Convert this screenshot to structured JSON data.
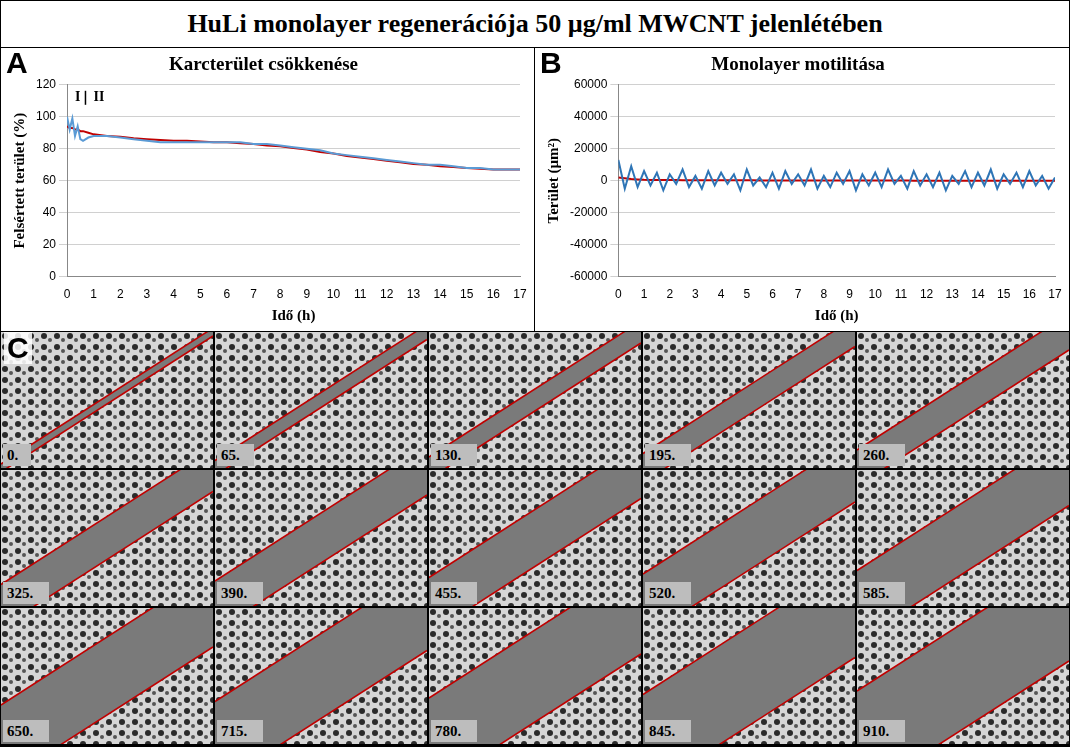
{
  "title": "HuLi monolayer regenerációja 50 µg/ml MWCNT jelenlétében",
  "chart_data": [
    {
      "panel": "A",
      "type": "line",
      "title": "Karcterület csökkenése",
      "x_label": "Idő (h)",
      "y_label": "Felsértett terület (%)",
      "annotations": [
        "I",
        "II"
      ],
      "x": [
        0,
        0.1,
        0.2,
        0.3,
        0.4,
        0.5,
        0.6,
        0.8,
        1,
        1.5,
        2,
        2.5,
        3,
        3.5,
        4,
        4.5,
        5,
        5.5,
        6,
        6.5,
        7,
        7.5,
        8,
        8.5,
        9,
        9.5,
        10,
        10.5,
        11,
        11.5,
        12,
        12.5,
        13,
        13.5,
        14,
        14.5,
        15,
        15.5,
        16,
        16.5,
        17
      ],
      "series": [
        {
          "color": "#5b9bd5",
          "values": [
            100,
            92,
            99,
            88,
            94,
            86,
            85,
            87,
            88,
            88,
            87,
            86,
            85,
            84,
            84,
            84,
            84,
            84,
            84,
            84,
            83,
            83,
            82,
            81,
            80,
            79,
            77,
            76,
            75,
            74,
            73,
            72,
            71,
            70,
            70,
            69,
            68,
            68,
            67,
            67,
            67
          ]
        },
        {
          "color": "#c00000",
          "values": [
            94,
            93,
            93,
            92,
            92,
            91,
            91,
            90,
            89,
            88,
            87.5,
            86.5,
            86,
            85.5,
            85,
            85,
            84.5,
            84,
            84,
            83.5,
            83,
            82,
            81.5,
            80.5,
            79.5,
            78,
            77,
            75.5,
            74.5,
            73.5,
            72.5,
            71.5,
            70.5,
            70,
            69,
            68.5,
            68,
            67.5,
            67,
            67,
            67
          ]
        }
      ],
      "xlim": [
        0,
        17
      ],
      "xticks": [
        0,
        1,
        2,
        3,
        4,
        5,
        6,
        7,
        8,
        9,
        10,
        11,
        12,
        13,
        14,
        15,
        16,
        17
      ],
      "ylim": [
        0,
        120
      ],
      "yticks": [
        0,
        20,
        40,
        60,
        80,
        100,
        120
      ],
      "grid": true
    },
    {
      "panel": "B",
      "type": "line",
      "title": "Monolayer motilitása",
      "x_label": "Idő (h)",
      "y_label": "Terület (µm²)",
      "x": [
        0,
        0.25,
        0.5,
        0.75,
        1,
        1.25,
        1.5,
        1.75,
        2,
        2.25,
        2.5,
        2.75,
        3,
        3.25,
        3.5,
        3.75,
        4,
        4.25,
        4.5,
        4.75,
        5,
        5.25,
        5.5,
        5.75,
        6,
        6.25,
        6.5,
        6.75,
        7,
        7.25,
        7.5,
        7.75,
        8,
        8.25,
        8.5,
        8.75,
        9,
        9.25,
        9.5,
        9.75,
        10,
        10.25,
        10.5,
        10.75,
        11,
        11.25,
        11.5,
        11.75,
        12,
        12.25,
        12.5,
        12.75,
        13,
        13.25,
        13.5,
        13.75,
        14,
        14.25,
        14.5,
        14.75,
        15,
        15.25,
        15.5,
        15.75,
        16,
        16.25,
        16.5,
        16.75,
        17
      ],
      "series": [
        {
          "color": "#2e75b6",
          "values": [
            13000,
            -5000,
            9000,
            -4000,
            6000,
            -3000,
            5000,
            -6000,
            4000,
            -2000,
            7000,
            -4000,
            3000,
            -5000,
            6000,
            -3000,
            5000,
            -2000,
            4000,
            -6000,
            7000,
            -3000,
            2000,
            -4000,
            5000,
            -5000,
            6000,
            -2000,
            4000,
            -3000,
            7000,
            -5000,
            3000,
            -4000,
            5000,
            -2000,
            6000,
            -6000,
            4000,
            -3000,
            5000,
            -4000,
            7000,
            -2000,
            3000,
            -5000,
            6000,
            -3000,
            4000,
            -4000,
            5000,
            -6000,
            3000,
            -2000,
            6000,
            -4000,
            5000,
            -3000,
            7000,
            -5000,
            4000,
            -2000,
            5000,
            -4000,
            6000,
            -3000,
            3000,
            -5000,
            2000
          ]
        },
        {
          "color": "#c00000",
          "values": [
            2000,
            1500,
            1000,
            800,
            600,
            500,
            500,
            400,
            400,
            400,
            300,
            300,
            300,
            300,
            300,
            300,
            300,
            300,
            300,
            300,
            300,
            300,
            200,
            200,
            200,
            200,
            200,
            200,
            200,
            200,
            200,
            200,
            200,
            200,
            200,
            100,
            100,
            100,
            100,
            100,
            100,
            100,
            100,
            100,
            100,
            100,
            0,
            0,
            0,
            0,
            0,
            0,
            0,
            0,
            0,
            0,
            0,
            0,
            0,
            0,
            0,
            0,
            0,
            0,
            0,
            0,
            0,
            0,
            0
          ]
        }
      ],
      "xlim": [
        0,
        17
      ],
      "xticks": [
        0,
        1,
        2,
        3,
        4,
        5,
        6,
        7,
        8,
        9,
        10,
        11,
        12,
        13,
        14,
        15,
        16,
        17
      ],
      "ylim": [
        -60000,
        60000
      ],
      "yticks": [
        -60000,
        -40000,
        -20000,
        0,
        20000,
        40000,
        60000
      ],
      "grid": true
    }
  ],
  "image_panel": {
    "panel": "C",
    "frames": [
      "0.",
      "65.",
      "130.",
      "195.",
      "260.",
      "325.",
      "390.",
      "455.",
      "520.",
      "585.",
      "650.",
      "715.",
      "780.",
      "845.",
      "910."
    ]
  }
}
